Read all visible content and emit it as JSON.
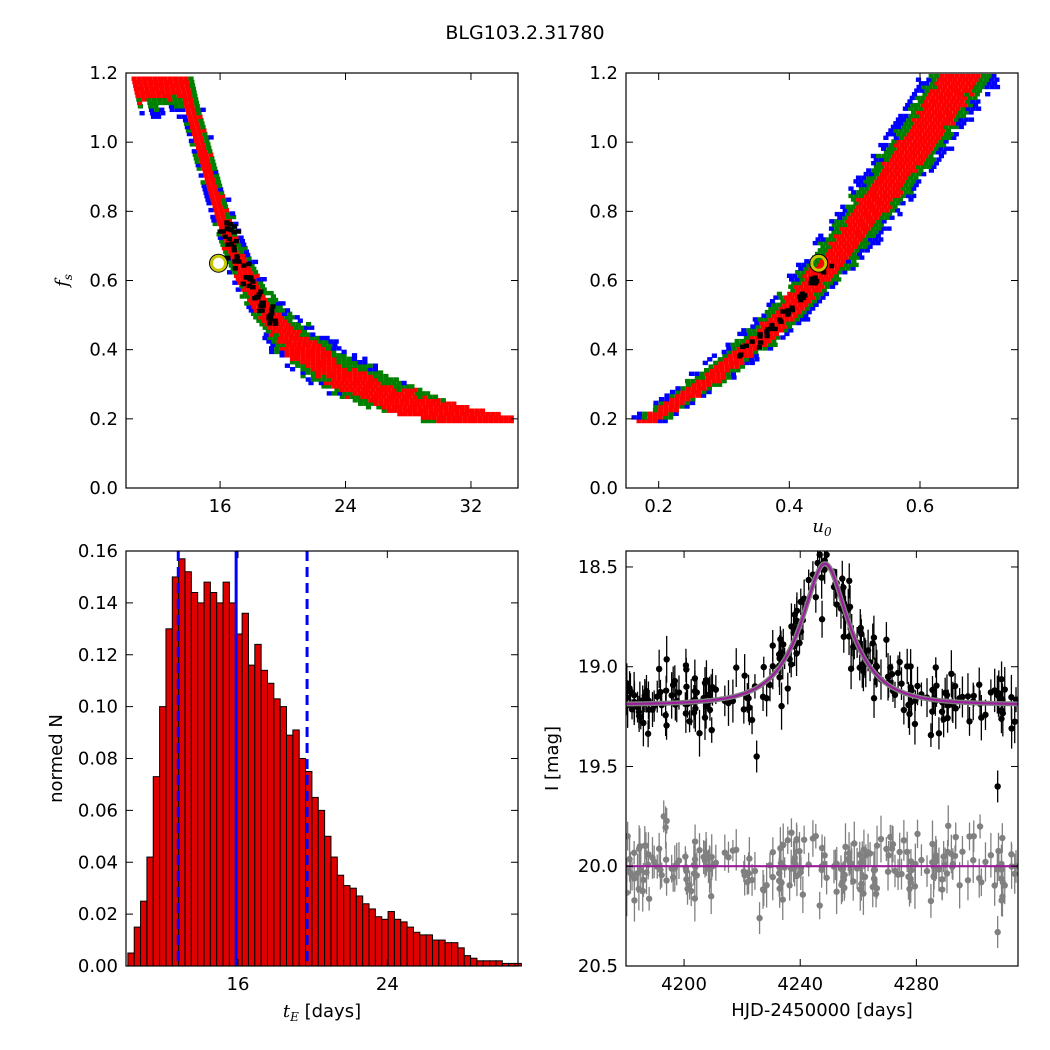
{
  "figure": {
    "title": "BLG103.2.31780"
  },
  "colors": {
    "sigma1": "#ff0000",
    "sigma2": "#008000",
    "sigma3": "#0000ff",
    "best": "#000000",
    "marker": "#c8c800",
    "model": "#9b1d9b",
    "data_obs": "#000000",
    "data_resid": "#808080",
    "hist_fill": "#e00000",
    "hist_edge": "#000000",
    "vline": "#0000ff"
  },
  "chart_data": [
    {
      "id": "fs_vs_tE",
      "type": "heatmap",
      "title": "",
      "xlabel": "",
      "ylabel": "f_s",
      "xlim": [
        10,
        35
      ],
      "ylim": [
        0.0,
        1.2
      ],
      "xticks": [
        16,
        24,
        32
      ],
      "yticks": [
        "0.0",
        "0.2",
        "0.4",
        "0.6",
        "0.8",
        "1.0",
        "1.2"
      ],
      "confidence_band": {
        "x_center": [
          13.5,
          14.0,
          15.0,
          16.0,
          17.0,
          18.0,
          19.0,
          20.0,
          21.0,
          22.0,
          23.0,
          24.0,
          25.0,
          26.0,
          27.0,
          28.0,
          29.0,
          30.0,
          31.0,
          32.0
        ],
        "fs_center": [
          1.2,
          1.1,
          0.94,
          0.78,
          0.66,
          0.57,
          0.5,
          0.45,
          0.41,
          0.38,
          0.35,
          0.32,
          0.3,
          0.28,
          0.26,
          0.245,
          0.235,
          0.225,
          0.215,
          0.21
        ],
        "half_width_sigma1": 0.05,
        "half_width_sigma2": 0.075,
        "half_width_sigma3": 0.095
      },
      "best_fit": {
        "tE": 15.9,
        "fs": 0.65
      }
    },
    {
      "id": "fs_vs_u0",
      "type": "heatmap",
      "title": "",
      "xlabel": "u_0",
      "ylabel": "",
      "xlim": [
        0.15,
        0.75
      ],
      "ylim": [
        0.0,
        1.2
      ],
      "xticks": [
        "0.2",
        "0.4",
        "0.6"
      ],
      "yticks": [
        "0.0",
        "0.2",
        "0.4",
        "0.6",
        "0.8",
        "1.0",
        "1.2"
      ],
      "confidence_band": {
        "u0_center": [
          0.18,
          0.22,
          0.26,
          0.3,
          0.34,
          0.38,
          0.42,
          0.46,
          0.5,
          0.54,
          0.58,
          0.62,
          0.66
        ],
        "fs_center": [
          0.2,
          0.25,
          0.3,
          0.36,
          0.42,
          0.49,
          0.57,
          0.66,
          0.76,
          0.86,
          0.97,
          1.08,
          1.2
        ],
        "half_width_sigma1": 0.02,
        "half_width_sigma2": 0.03,
        "half_width_sigma3": 0.04
      },
      "best_fit": {
        "u0": 0.445,
        "fs": 0.65
      }
    },
    {
      "id": "tE_histogram",
      "type": "bar",
      "title": "",
      "xlabel": "t_E [days]",
      "ylabel": "normed N",
      "xlim": [
        10,
        31
      ],
      "ylim": [
        0.0,
        0.16
      ],
      "xticks": [
        16,
        24
      ],
      "yticks": [
        "0.00",
        "0.02",
        "0.04",
        "0.06",
        "0.08",
        "0.10",
        "0.12",
        "0.14",
        "0.16"
      ],
      "bin_width": 0.34,
      "bin_start": 10.1,
      "values": [
        0.005,
        0.015,
        0.025,
        0.042,
        0.073,
        0.1,
        0.13,
        0.15,
        0.157,
        0.152,
        0.144,
        0.14,
        0.148,
        0.144,
        0.14,
        0.148,
        0.14,
        0.128,
        0.136,
        0.116,
        0.124,
        0.114,
        0.109,
        0.103,
        0.1,
        0.089,
        0.091,
        0.08,
        0.075,
        0.065,
        0.06,
        0.05,
        0.042,
        0.035,
        0.031,
        0.03,
        0.027,
        0.024,
        0.022,
        0.019,
        0.018,
        0.021,
        0.018,
        0.017,
        0.015,
        0.013,
        0.012,
        0.012,
        0.01,
        0.01,
        0.009,
        0.009,
        0.007,
        0.004,
        0.003,
        0.002,
        0.002,
        0.002,
        0.002,
        0.001,
        0.001,
        0.001
      ],
      "vlines": {
        "median": 15.9,
        "lower": 12.8,
        "upper": 19.7
      }
    },
    {
      "id": "light_curve",
      "type": "scatter",
      "title": "",
      "xlabel": "HJD-2450000 [days]",
      "ylabel": "I [mag]",
      "xlim": [
        4180,
        4315
      ],
      "ylim": [
        20.5,
        18.42
      ],
      "xticks": [
        4200,
        4240,
        4280
      ],
      "yticks": [
        "18.5",
        "19.0",
        "19.5",
        "20.0",
        "20.5"
      ],
      "model": {
        "t0": 4248.5,
        "u0": 0.445,
        "tE": 15.9,
        "fs": 0.65,
        "baseline_mag": 19.19
      },
      "residual_offset_mag": 20.0,
      "highlight_points": [
        {
          "t": 4187,
          "mag": 19.15
        },
        {
          "t": 4197,
          "mag": 19.19
        },
        {
          "t": 4225,
          "mag": 19.45
        },
        {
          "t": 4246,
          "mag": 18.48
        },
        {
          "t": 4255,
          "mag": 18.85
        },
        {
          "t": 4308,
          "mag": 19.6
        },
        {
          "t": 4226,
          "mag": 20.26
        },
        {
          "t": 4308,
          "mag": 20.33
        },
        {
          "t": 4193,
          "mag": 19.75
        }
      ]
    }
  ]
}
